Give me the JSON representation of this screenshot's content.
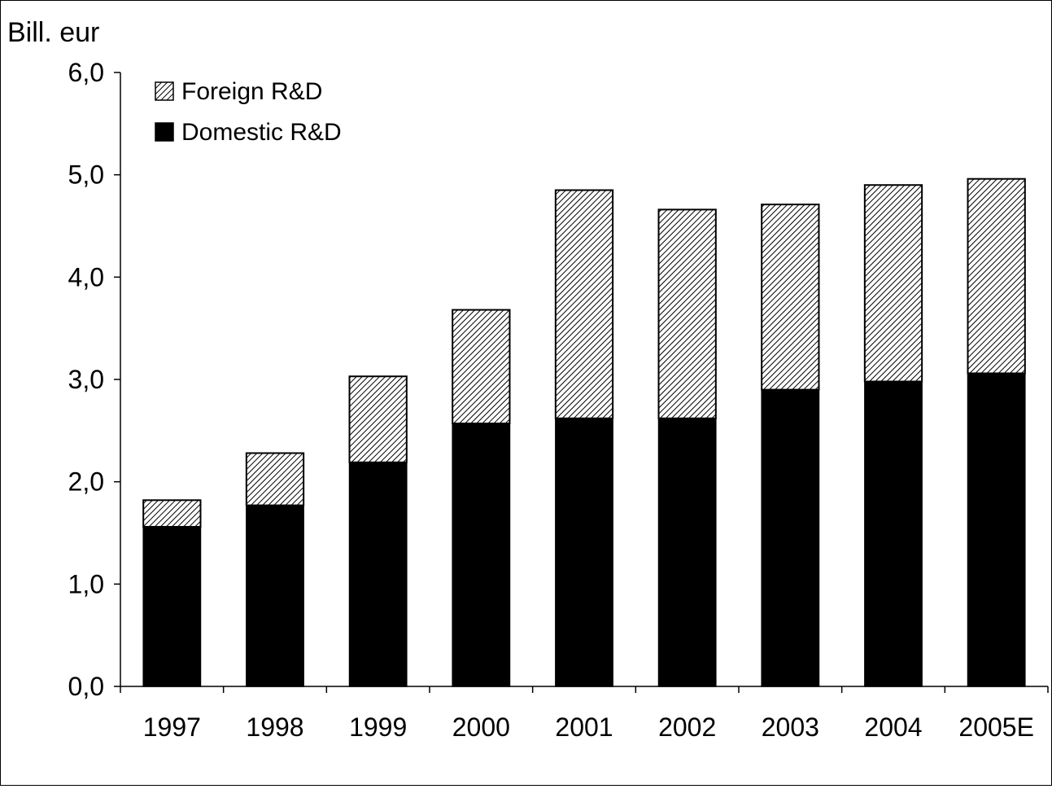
{
  "chart_data": {
    "type": "bar",
    "stacked": true,
    "title": "",
    "ylabel": "Bill. eur",
    "xlabel": "",
    "categories": [
      "1997",
      "1998",
      "1999",
      "2000",
      "2001",
      "2002",
      "2003",
      "2004",
      "2005E"
    ],
    "series": [
      {
        "name": "Domestic R&D",
        "values": [
          1.56,
          1.77,
          2.19,
          2.57,
          2.62,
          2.62,
          2.9,
          2.98,
          3.06
        ],
        "color": "#000000",
        "pattern": "solid"
      },
      {
        "name": "Foreign R&D",
        "values": [
          0.26,
          0.51,
          0.84,
          1.11,
          2.23,
          2.04,
          1.81,
          1.92,
          1.9
        ],
        "color": "#000000",
        "pattern": "diagonal-hatch"
      }
    ],
    "ylim": [
      0,
      6
    ],
    "yticks": [
      "0,0",
      "1,0",
      "2,0",
      "3,0",
      "4,0",
      "5,0",
      "6,0"
    ],
    "grid": false,
    "legend": {
      "position": "top-left",
      "entries": [
        "Foreign R&D",
        "Domestic R&D"
      ]
    }
  }
}
